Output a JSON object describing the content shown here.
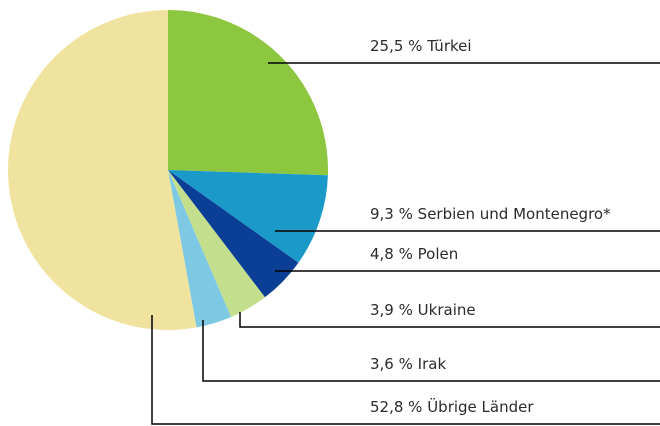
{
  "chart_data": {
    "type": "pie",
    "categories": [
      "Türkei",
      "Serbien und Montenegro*",
      "Polen",
      "Ukraine",
      "Irak",
      "Übrige Länder"
    ],
    "values": [
      25.5,
      9.3,
      4.8,
      3.9,
      3.6,
      52.8
    ],
    "value_labels": [
      "25,5 %",
      "9,3 %",
      "4,8 %",
      "3,9 %",
      "3,6 %",
      "52,8 %"
    ],
    "colors": [
      "#8dc63f",
      "#1b9ac9",
      "#0b3f96",
      "#c3df8e",
      "#7dc8e2",
      "#f0e3a0"
    ]
  }
}
